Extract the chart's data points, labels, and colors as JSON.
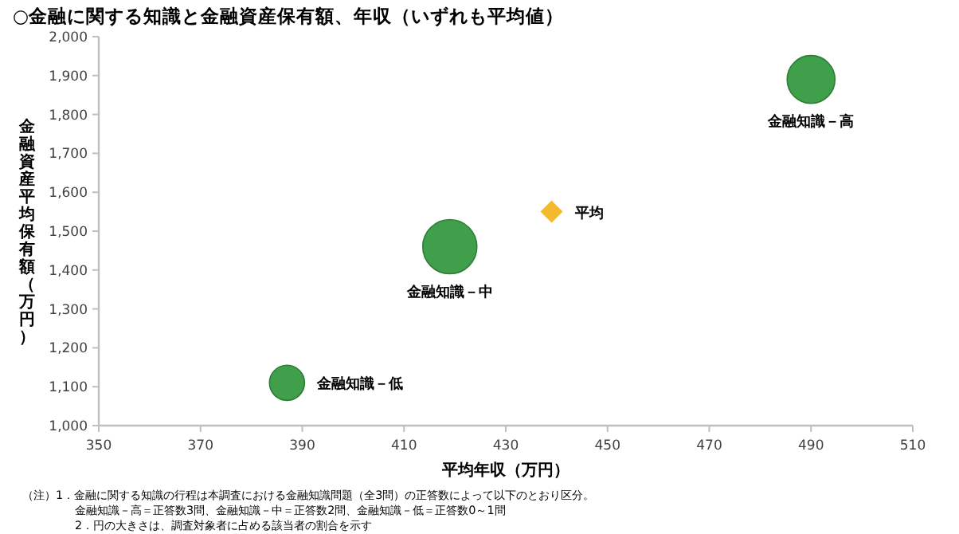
{
  "chart_data": {
    "type": "bubble",
    "title": "○金融に関する知識と金融資産保有額、年収（いずれも平均値）",
    "xlabel": "平均年収（万円）",
    "ylabel": "金融資産平均保有額（万円）",
    "xlim": [
      350,
      510
    ],
    "xticks": [
      350,
      370,
      390,
      410,
      430,
      450,
      470,
      490,
      510
    ],
    "ylim": [
      1000,
      2000
    ],
    "yticks": [
      {
        "value": 1000,
        "label": "1,000"
      },
      {
        "value": 1100,
        "label": "1,100"
      },
      {
        "value": 1200,
        "label": "1,200"
      },
      {
        "value": 1300,
        "label": "1,300"
      },
      {
        "value": 1400,
        "label": "1,400"
      },
      {
        "value": 1500,
        "label": "1,500"
      },
      {
        "value": 1600,
        "label": "1,600"
      },
      {
        "value": 1700,
        "label": "1,700"
      },
      {
        "value": 1800,
        "label": "1,800"
      },
      {
        "value": 1900,
        "label": "1,900"
      },
      {
        "value": 2000,
        "label": "2,000"
      }
    ],
    "series": [
      {
        "name": "金融知識－高",
        "color": "#3f9f4a",
        "x": [
          490
        ],
        "values": [
          1890
        ],
        "sizes": [
          0.78
        ]
      },
      {
        "name": "金融知識－中",
        "color": "#3f9f4a",
        "x": [
          419
        ],
        "values": [
          1460
        ],
        "sizes": [
          1
        ]
      },
      {
        "name": "金融知識－低",
        "color": "#3f9f4a",
        "x": [
          387
        ],
        "values": [
          1110
        ],
        "sizes": [
          0.42
        ]
      },
      {
        "name": "平均",
        "type": "scatter",
        "marker": "diamond",
        "color": "#f4b92c",
        "x": [
          439
        ],
        "values": [
          1550
        ]
      }
    ],
    "annotations": [
      "（注）1．金融に関する知識の行程は本調査における金融知識問題（全3問）の正答数によって以下のとおり区分。",
      "金融知識－高＝正答数3問、金融知識－中＝正答数2問、金融知識－低＝正答数0～1問",
      "2．円の大きさは、調査対象者に占める該当者の割合を示す"
    ]
  }
}
